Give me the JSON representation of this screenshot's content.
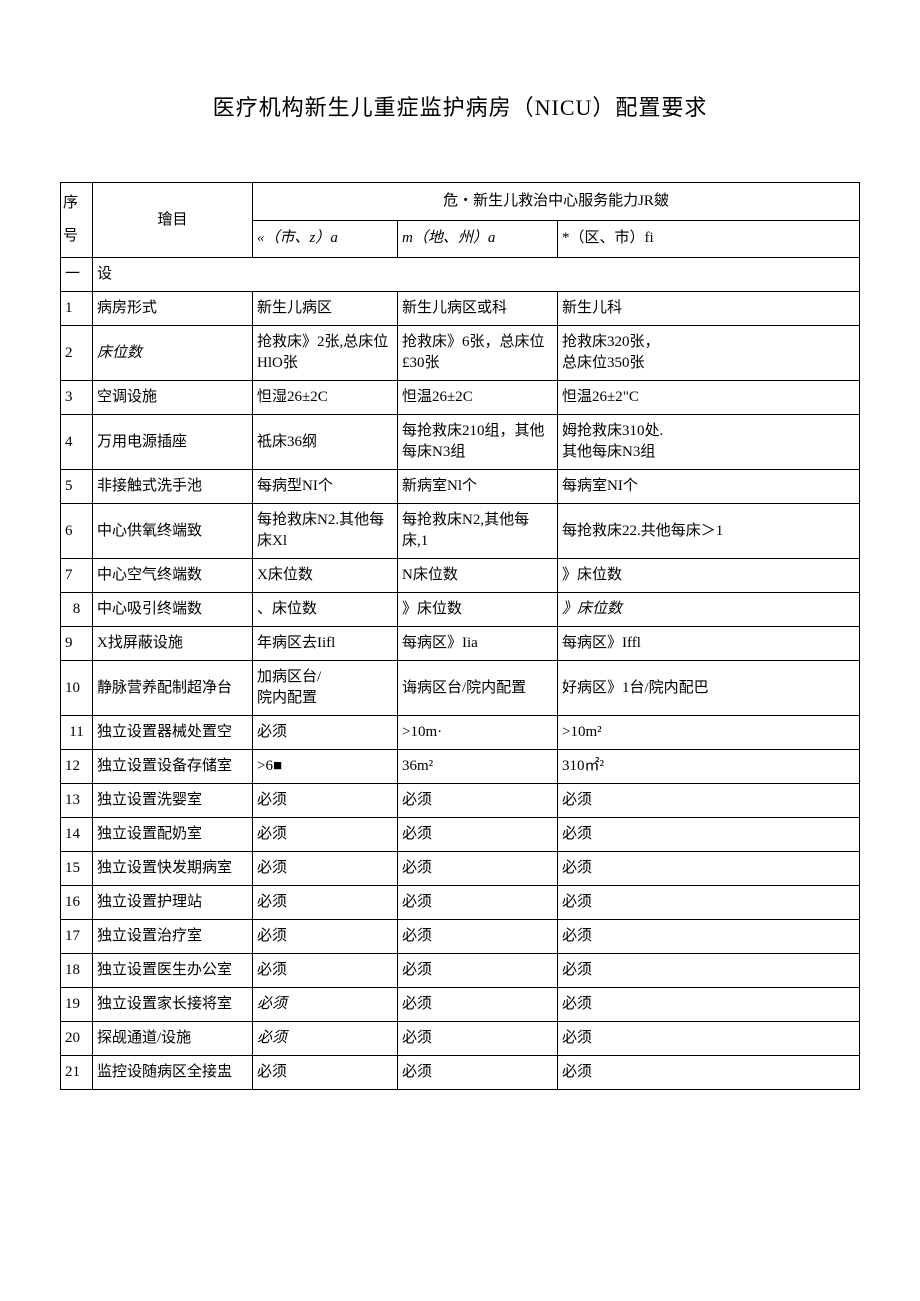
{
  "title": "医疗机构新生儿重症监护病房（NICU）配置要求",
  "header": {
    "seq": "序号",
    "item": "璯目",
    "group": "危・新生儿救治中心服务能力JR皴",
    "c1": "«（市、z）a",
    "c2": "m（地、州）a",
    "c3": "*（区、市）fi",
    "c1_style": "italic",
    "c2_style": "italic"
  },
  "section": {
    "seq": "一",
    "label": "设"
  },
  "rows": [
    {
      "seq": "1",
      "item": "病房形式",
      "c1": "新生儿病区",
      "c2": "新生儿病区或科",
      "c3": "新生儿科"
    },
    {
      "seq": "2",
      "item": "床位数",
      "item_style": "italic",
      "c1": "抢救床》2张,总床位HlO张",
      "c2": "抢救床》6张，总床位£30张",
      "c3": "抢救床320张，\n总床位350张"
    },
    {
      "seq": "3",
      "item": "空调设施",
      "c1": "怛湿26±2C",
      "c2": "怛温26±2C",
      "c3": "怛温26±2\"C"
    },
    {
      "seq": "4",
      "item": "万用电源插座",
      "c1": "祗床36纲",
      "c2": "每抢救床210组，其他每床N3组",
      "c3": "姆抢救床310处.\n其他每床N3组"
    },
    {
      "seq": "5",
      "item": "非接触式洗手池",
      "c1": "每病型NI个",
      "c2": "新病室Nl个",
      "c3": "每病室NI个"
    },
    {
      "seq": "6",
      "item": "中心供氧终端致",
      "c1": "每抢救床N2.其他每床Xl",
      "c2": "每抢救床N2,其他每床,1",
      "c3": "每抢救床22.共他每床＞1"
    },
    {
      "seq": "7",
      "item": "中心空气终端数",
      "c1": "X床位数",
      "c2": "N床位数",
      "c3": "》床位数"
    },
    {
      "seq": "8",
      "seq_align": "center",
      "item": "中心吸引终端数",
      "c1": "、床位数",
      "c2": "》床位数",
      "c3": "》床位数",
      "c3_style": "italic"
    },
    {
      "seq": "9",
      "item": "X找屏蔽设施",
      "c1": "年病区去Iifl",
      "c2": "每病区》Iia",
      "c3": "每病区》Iffl"
    },
    {
      "seq": "10",
      "item": "静脉营养配制超净台",
      "c1": "加病区台/\n院内配置",
      "c2": "诲病区台/院内配置",
      "c3": "好病区》1台/院内配巴"
    },
    {
      "seq": "11",
      "seq_align": "center",
      "item": "独立设置器械处置空",
      "c1": "必须",
      "c2": ">10m·",
      "c3": ">10m²"
    },
    {
      "seq": "12",
      "item": "独立设置设备存储室",
      "c1": ">6■",
      "c2": "36m²",
      "c3": "310㎡²"
    },
    {
      "seq": "13",
      "item": "独立设置洗婴室",
      "c1": "必须",
      "c2": "必须",
      "c3": "必须"
    },
    {
      "seq": "14",
      "item": "独立设置配奶室",
      "c1": "必须",
      "c2": "必须",
      "c3": "必须"
    },
    {
      "seq": "15",
      "item": "独立设置快发期病室",
      "c1": "必须",
      "c2": "必须",
      "c3": "必须"
    },
    {
      "seq": "16",
      "item": "独立设置护理站",
      "c1": "必须",
      "c2": "必须",
      "c3": "必须"
    },
    {
      "seq": "17",
      "item": "独立设置治疗室",
      "c1": "必须",
      "c2": "必须",
      "c3": "必须"
    },
    {
      "seq": "18",
      "item": "独立设置医生办公室",
      "c1": "必须",
      "c2": "必须",
      "c3": "必须"
    },
    {
      "seq": "19",
      "item": "独立设置家长接将室",
      "c1": "必须",
      "c1_style": "italic",
      "c2": "必须",
      "c3": "必须"
    },
    {
      "seq": "20",
      "item": "探觇通道/设施",
      "c1": "必须",
      "c1_style": "italic",
      "c2": "必须",
      "c3": "必须"
    },
    {
      "seq": "21",
      "item": "监控设随病区全接盅",
      "c1": "必须",
      "c2": "必须",
      "c3": "必须"
    }
  ],
  "colors": {
    "background": "#ffffff",
    "border": "#000000",
    "text": "#000000"
  },
  "typography": {
    "title_fontsize": 22,
    "body_fontsize": 15,
    "font_family": "SimSun"
  }
}
